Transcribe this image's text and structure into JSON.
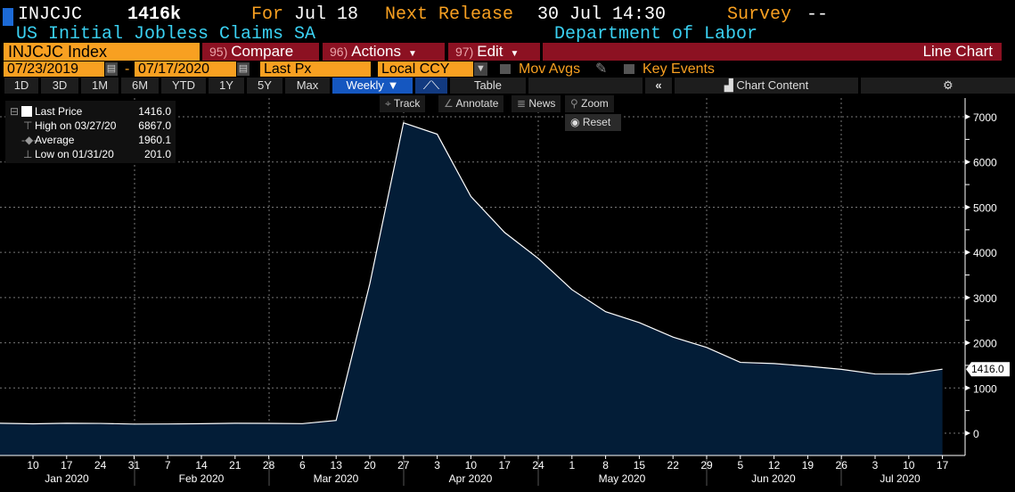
{
  "header": {
    "ticker": "INJCJC",
    "value": "1416k",
    "for_label": "For",
    "for_date": "Jul 18",
    "next_release_label": "Next Release",
    "next_release": "30 Jul 14:30",
    "survey_label": "Survey",
    "survey_value": "--",
    "description": "US Initial Jobless Claims SA",
    "source": "Department of Labor"
  },
  "toolbar": {
    "security": "INJCJC Index",
    "compare": {
      "num": "95)",
      "label": "Compare"
    },
    "actions": {
      "num": "96)",
      "label": "Actions"
    },
    "edit": {
      "num": "97)",
      "label": "Edit"
    },
    "chart_type": "Line Chart",
    "start_date": "07/23/2019",
    "date_sep": "-",
    "end_date": "07/17/2020",
    "field": "Last Px",
    "currency": "Local CCY",
    "mov_avgs": "Mov Avgs",
    "key_events": "Key Events",
    "ranges": [
      "1D",
      "3D",
      "1M",
      "6M",
      "YTD",
      "1Y",
      "5Y",
      "Max"
    ],
    "period": "Weekly",
    "table": "Table",
    "chart_content": "Chart Content"
  },
  "tools": {
    "track": "Track",
    "annotate": "Annotate",
    "news": "News",
    "zoom": "Zoom",
    "reset": "Reset"
  },
  "legend": [
    {
      "label": "Last Price",
      "value": "1416.0"
    },
    {
      "label": "High on 03/27/20",
      "value": "6867.0"
    },
    {
      "label": "Average",
      "value": "1960.1"
    },
    {
      "label": "Low on 01/31/20",
      "value": "201.0"
    }
  ],
  "colors": {
    "fill": "#031d37",
    "line": "#ffffff",
    "accent": "#f8a021",
    "red": "#8c1122"
  },
  "chart_data": {
    "type": "area",
    "title": "US Initial Jobless Claims SA",
    "x": [
      "2020-01-03",
      "2020-01-10",
      "2020-01-17",
      "2020-01-24",
      "2020-01-31",
      "2020-02-07",
      "2020-02-14",
      "2020-02-21",
      "2020-02-28",
      "2020-03-06",
      "2020-03-13",
      "2020-03-20",
      "2020-03-27",
      "2020-04-03",
      "2020-04-10",
      "2020-04-17",
      "2020-04-24",
      "2020-05-01",
      "2020-05-08",
      "2020-05-15",
      "2020-05-22",
      "2020-05-29",
      "2020-06-05",
      "2020-06-12",
      "2020-06-19",
      "2020-06-26",
      "2020-07-03",
      "2020-07-10",
      "2020-07-17"
    ],
    "series": [
      {
        "name": "Last Price",
        "values": [
          220,
          207,
          220,
          216,
          201,
          203,
          210,
          219,
          217,
          211,
          282,
          3307,
          6867,
          6615,
          5237,
          4442,
          3867,
          3176,
          2687,
          2446,
          2126,
          1897,
          1566,
          1540,
          1482,
          1413,
          1310,
          1307,
          1416
        ]
      }
    ],
    "x_tick_labels": [
      "10",
      "17",
      "24",
      "31",
      "7",
      "14",
      "21",
      "28",
      "6",
      "13",
      "20",
      "27",
      "3",
      "10",
      "17",
      "24",
      "1",
      "8",
      "15",
      "22",
      "29",
      "5",
      "12",
      "19",
      "26",
      "3",
      "10",
      "17"
    ],
    "month_labels": [
      "Jan 2020",
      "Feb 2020",
      "Mar 2020",
      "Apr 2020",
      "May 2020",
      "Jun 2020",
      "Jul 2020"
    ],
    "y_ticks": [
      "0",
      "1000",
      "2000",
      "3000",
      "4000",
      "5000",
      "6000",
      "7000"
    ],
    "ylim": [
      -400,
      7500
    ],
    "last_value_label": "1416.0",
    "grid": true
  }
}
